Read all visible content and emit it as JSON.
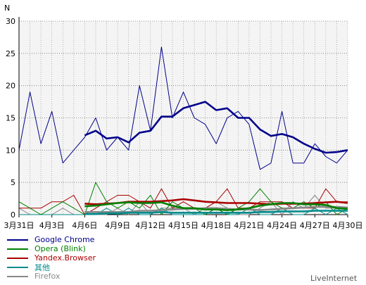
{
  "chart_data": {
    "type": "line",
    "title": "",
    "xlabel": "",
    "ylabel": "N",
    "ylim": [
      0,
      30
    ],
    "yticks": [
      0,
      5,
      10,
      15,
      20,
      25,
      30
    ],
    "grid": true,
    "legend_position": "bottom-left",
    "x_ticks": [
      "3月31日",
      "4月3日",
      "4月6日",
      "4月9日",
      "4月12日",
      "4月15日",
      "4月18日",
      "4月21日",
      "4月24日",
      "4月27日",
      "4月30日"
    ],
    "num_days": 31,
    "series": [
      {
        "name": "Google Chrome",
        "color": "#00008b",
        "daily": [
          10,
          19,
          11,
          16,
          8,
          10,
          12,
          15,
          10,
          12,
          10,
          20,
          13,
          26,
          15,
          19,
          15,
          14,
          11,
          15,
          16,
          14,
          7,
          8,
          16,
          8,
          8,
          11,
          9,
          8,
          10
        ],
        "avg": [
          null,
          null,
          null,
          null,
          null,
          null,
          12.3,
          13.0,
          11.8,
          12.0,
          11.2,
          12.7,
          13.0,
          15.2,
          15.2,
          16.5,
          17.0,
          17.5,
          16.2,
          16.5,
          15.0,
          15.0,
          13.2,
          12.2,
          12.5,
          12.0,
          11.0,
          10.2,
          9.6,
          9.7,
          10.0
        ]
      },
      {
        "name": "Opera (Blink)",
        "color": "#008000",
        "daily": [
          2,
          1,
          0,
          1,
          2,
          1,
          0,
          5,
          2,
          1,
          2,
          1,
          3,
          0,
          2,
          1,
          1,
          0,
          1,
          0,
          1,
          2,
          4,
          2,
          1,
          1,
          2,
          1,
          2,
          0,
          1
        ],
        "avg": [
          null,
          null,
          null,
          null,
          null,
          null,
          1.3,
          1.4,
          1.6,
          1.8,
          1.9,
          1.8,
          1.8,
          1.9,
          1.4,
          1.0,
          1.0,
          0.8,
          0.8,
          0.7,
          0.8,
          1.0,
          1.4,
          1.6,
          1.8,
          1.8,
          1.6,
          1.6,
          1.5,
          1.0,
          0.9
        ]
      },
      {
        "name": "Yandex.Browser",
        "color": "#aa0000",
        "daily": [
          1,
          1,
          1,
          2,
          2,
          3,
          0,
          1,
          2,
          3,
          3,
          2,
          1,
          4,
          1,
          2,
          1,
          1,
          2,
          4,
          1,
          1,
          2,
          2,
          2,
          1,
          1,
          1,
          4,
          2,
          2
        ],
        "avg": [
          null,
          null,
          null,
          null,
          null,
          null,
          1.7,
          1.6,
          1.7,
          1.8,
          2.0,
          2.0,
          2.0,
          2.1,
          2.2,
          2.4,
          2.2,
          2.0,
          1.9,
          1.8,
          1.8,
          1.8,
          1.7,
          1.6,
          1.7,
          1.7,
          1.7,
          1.8,
          1.9,
          2.0,
          1.8
        ]
      },
      {
        "name": "其他",
        "color": "#008b8b",
        "daily": [
          0,
          0,
          0,
          0,
          0,
          0,
          0,
          0,
          1,
          0,
          1,
          0,
          0,
          1,
          0,
          0,
          0,
          0,
          1,
          0,
          0,
          1,
          0,
          0,
          1,
          0,
          0,
          1,
          0,
          1,
          0
        ],
        "avg": [
          null,
          null,
          null,
          null,
          null,
          null,
          0.1,
          0.1,
          0.2,
          0.2,
          0.3,
          0.3,
          0.3,
          0.4,
          0.3,
          0.3,
          0.3,
          0.3,
          0.3,
          0.3,
          0.3,
          0.3,
          0.4,
          0.4,
          0.5,
          0.5,
          0.5,
          0.6,
          0.6,
          0.6,
          0.6
        ]
      },
      {
        "name": "Firefox",
        "color": "#888888",
        "daily": [
          1,
          0,
          0,
          0,
          1,
          0,
          0,
          0,
          0,
          1,
          0,
          2,
          0,
          1,
          1,
          1,
          0,
          1,
          2,
          1,
          0,
          0,
          1,
          2,
          0,
          2,
          1,
          3,
          1,
          1,
          1
        ],
        "avg": [
          null,
          null,
          null,
          null,
          null,
          null,
          0.4,
          0.4,
          0.4,
          0.4,
          0.4,
          0.6,
          0.6,
          0.7,
          0.8,
          0.9,
          0.9,
          1.0,
          1.0,
          0.9,
          0.8,
          0.8,
          0.7,
          0.8,
          0.9,
          1.0,
          1.1,
          1.2,
          1.2,
          1.2,
          1.1
        ]
      }
    ]
  },
  "credit": "LiveInternet"
}
